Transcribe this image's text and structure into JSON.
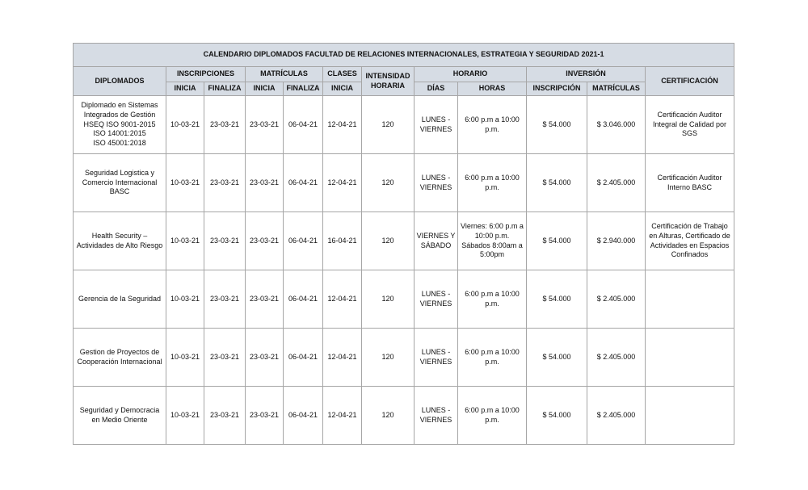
{
  "title": "CALENDARIO DIPLOMADOS FACULTAD DE RELACIONES INTERNACIONALES, ESTRATEGIA Y SEGURIDAD 2021-1",
  "headers": {
    "diplomados": "DIPLOMADOS",
    "inscripciones": "INSCRIPCIONES",
    "matriculas": "MATRÍCULAS",
    "clases": "CLASES",
    "intensidad": "INTENSIDAD HORARIA",
    "horario": "HORARIO",
    "inversion": "INVERSIÓN",
    "certificacion": "CERTIFICACIÓN",
    "inicia": "INICIA",
    "finaliza": "FINALIZA",
    "dias": "DÍAS",
    "horas": "HORAS",
    "inv_inscripcion": "INSCRIPCIÓN",
    "inv_matriculas": "MATRÍCULAS"
  },
  "rows": [
    {
      "name": "Diplomado en Sistemas Integrados de Gestión HSEQ ISO 9001-2015\nISO 14001:2015\nISO 45001:2018",
      "ins_ini": "10-03-21",
      "ins_fin": "23-03-21",
      "mat_ini": "23-03-21",
      "mat_fin": "06-04-21",
      "clases": "12-04-21",
      "intensidad": "120",
      "dias": "LUNES - VIERNES",
      "horas": "6:00 p.m a 10:00 p.m.",
      "inv_ins": "$ 54.000",
      "inv_mat": "$ 3.046.000",
      "cert": "Certificación Auditor Integral de Calidad por SGS"
    },
    {
      "name": "Seguridad Logistica y Comercio Internacional BASC",
      "ins_ini": "10-03-21",
      "ins_fin": "23-03-21",
      "mat_ini": "23-03-21",
      "mat_fin": "06-04-21",
      "clases": "12-04-21",
      "intensidad": "120",
      "dias": "LUNES - VIERNES",
      "horas": "6:00 p.m a 10:00 p.m.",
      "inv_ins": "$ 54.000",
      "inv_mat": "$ 2.405.000",
      "cert": "Certificación Auditor Interno BASC"
    },
    {
      "name": "Health Security – Actividades de Alto Riesgo",
      "ins_ini": "10-03-21",
      "ins_fin": "23-03-21",
      "mat_ini": "23-03-21",
      "mat_fin": "06-04-21",
      "clases": "16-04-21",
      "intensidad": "120",
      "dias": "VIERNES Y SÁBADO",
      "horas": "Viernes: 6:00 p.m a 10:00 p.m.\nSábados 8:00am a 5:00pm",
      "inv_ins": "$ 54.000",
      "inv_mat": "$ 2.940.000",
      "cert": "Certificación de Trabajo en Alturas, Certificado de Actividades en Espacios Confinados"
    },
    {
      "name": "Gerencia de la Seguridad",
      "ins_ini": "10-03-21",
      "ins_fin": "23-03-21",
      "mat_ini": "23-03-21",
      "mat_fin": "06-04-21",
      "clases": "12-04-21",
      "intensidad": "120",
      "dias": "LUNES - VIERNES",
      "horas": "6:00 p.m a 10:00 p.m.",
      "inv_ins": "$ 54.000",
      "inv_mat": "$ 2.405.000",
      "cert": ""
    },
    {
      "name": "Gestion de Proyectos de Cooperación Internacional",
      "ins_ini": "10-03-21",
      "ins_fin": "23-03-21",
      "mat_ini": "23-03-21",
      "mat_fin": "06-04-21",
      "clases": "12-04-21",
      "intensidad": "120",
      "dias": "LUNES - VIERNES",
      "horas": "6:00 p.m a 10:00 p.m.",
      "inv_ins": "$ 54.000",
      "inv_mat": "$ 2.405.000",
      "cert": ""
    },
    {
      "name": "Seguridad y Democracia en Medio Oriente",
      "ins_ini": "10-03-21",
      "ins_fin": "23-03-21",
      "mat_ini": "23-03-21",
      "mat_fin": "06-04-21",
      "clases": "12-04-21",
      "intensidad": "120",
      "dias": "LUNES - VIERNES",
      "horas": "6:00 p.m a 10:00 p.m.",
      "inv_ins": "$ 54.000",
      "inv_mat": "$ 2.405.000",
      "cert": ""
    }
  ]
}
